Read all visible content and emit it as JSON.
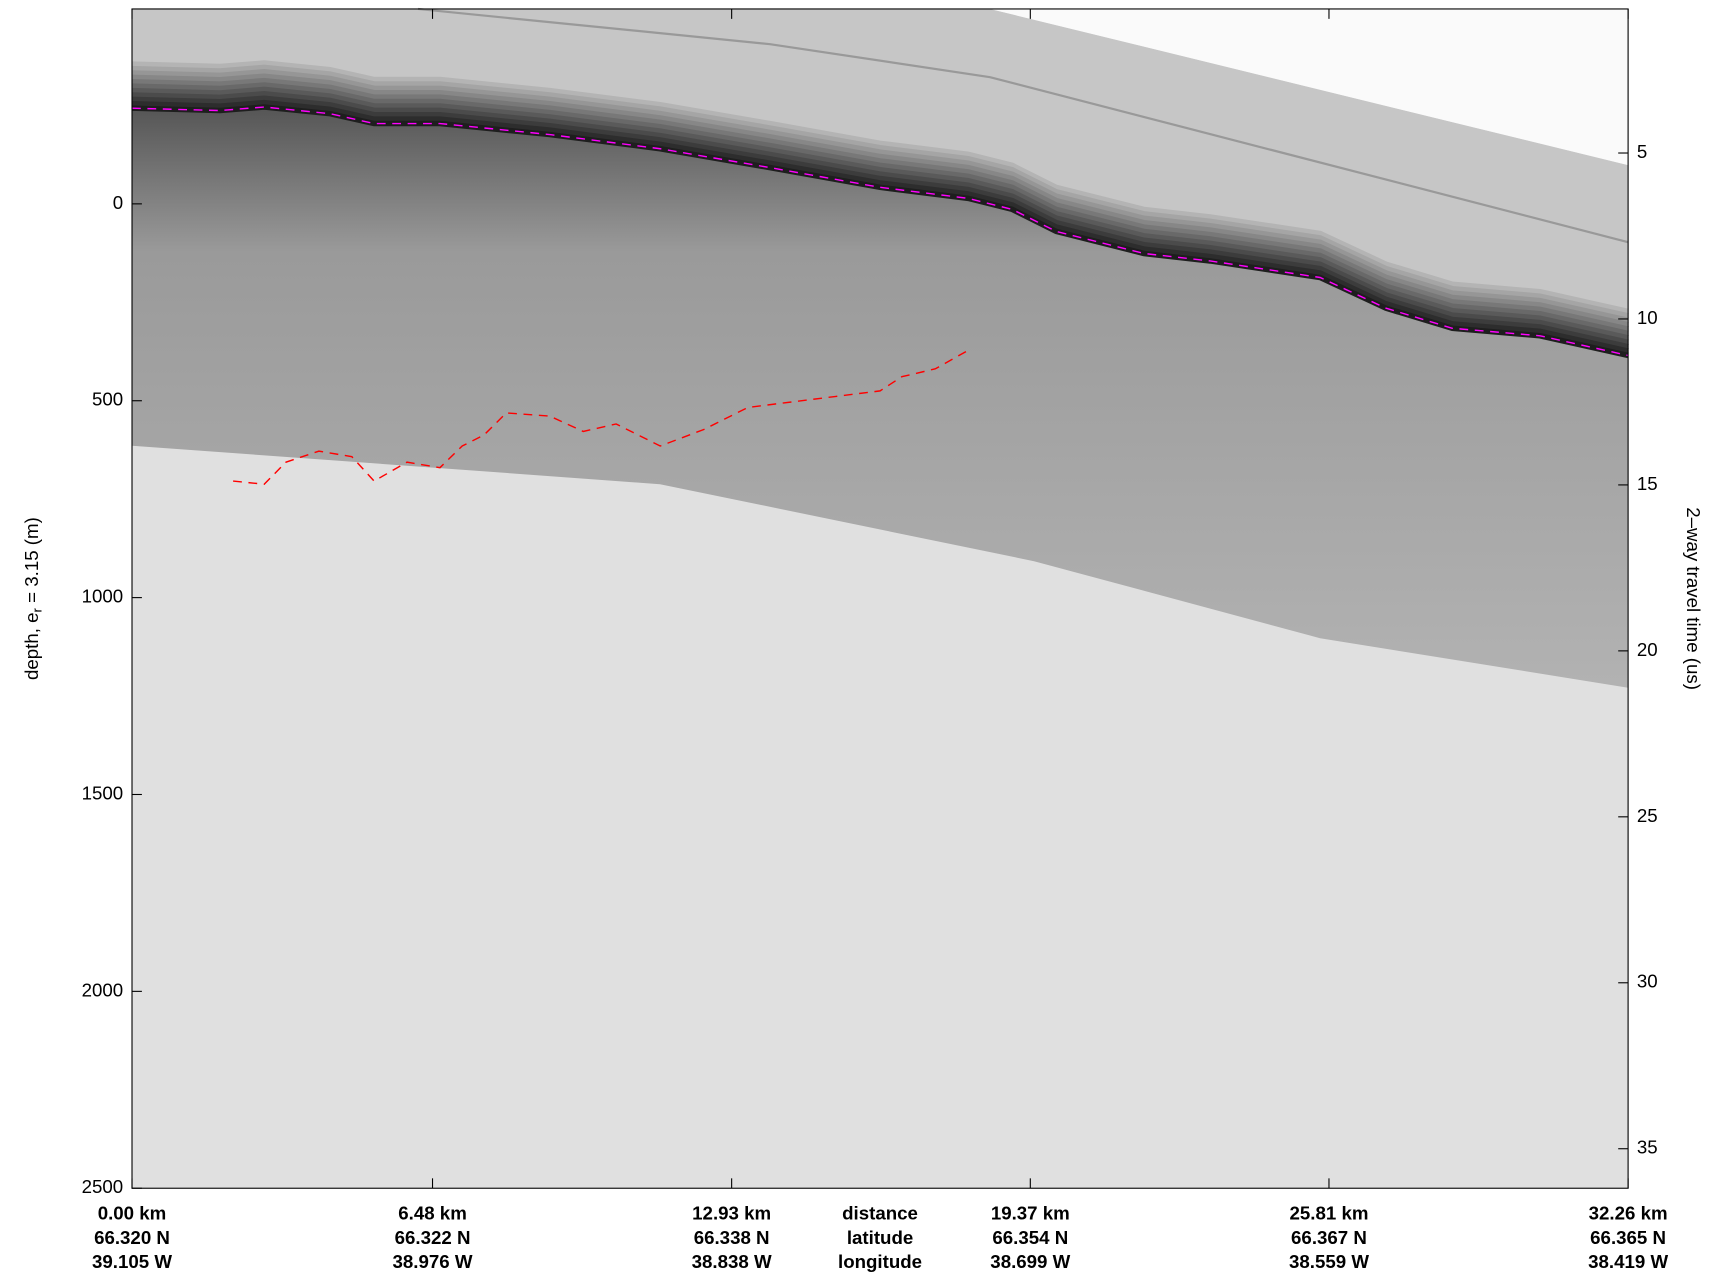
{
  "chart_data": {
    "type": "radargram",
    "ylabel": {
      "text": "depth, e",
      "sub": "r",
      "rest": " = 3.15 (m)"
    },
    "y2label": "2–way travel time (us)",
    "xlim": [
      0,
      32.26
    ],
    "ylim": [
      -495,
      2500
    ],
    "y2lim": [
      0.66,
      36.19
    ],
    "yticks": [
      0,
      500,
      1000,
      1500,
      2000,
      2500
    ],
    "y2ticks": [
      5,
      10,
      15,
      20,
      25,
      30,
      35
    ],
    "xticks": [
      {
        "value": 0,
        "label": "0.00 km"
      },
      {
        "value": 6.48,
        "label": "6.48 km"
      },
      {
        "value": 12.93,
        "label": "12.93 km"
      },
      {
        "value": 19.37,
        "label": "19.37 km"
      },
      {
        "value": 25.81,
        "label": "25.81 km"
      },
      {
        "value": 32.26,
        "label": "32.26 km"
      }
    ],
    "latitude_labels": [
      "66.320 N",
      "66.322 N",
      "66.338 N",
      "66.354 N",
      "66.367 N",
      "66.365 N"
    ],
    "longitude_labels": [
      "39.105 W",
      "38.976 W",
      "38.838 W",
      "38.699 W",
      "38.559 W",
      "38.419 W"
    ],
    "row_labels": [
      "distance",
      "latitude",
      "longitude"
    ],
    "series": [
      {
        "color": "#ff00ff",
        "x": [
          0,
          1.9,
          2.85,
          4.27,
          5.22,
          6.64,
          9.01,
          11.39,
          13.76,
          16.13,
          18.03,
          18.98,
          19.93,
          21.82,
          23.25,
          25.62,
          27.04,
          28.47,
          30.36,
          32.26
        ],
        "values": [
          -243,
          -237,
          -246,
          -229,
          -204,
          -204,
          -176,
          -140,
          -92,
          -42,
          -14,
          14,
          70,
          126,
          145,
          187,
          265,
          316,
          335,
          385
        ]
      },
      {
        "color": "#ff0000",
        "x": [
          2.18,
          2.85,
          3.32,
          4.03,
          4.74,
          5.22,
          5.93,
          6.64,
          7.12,
          7.59,
          8.07,
          9.01,
          9.73,
          10.44,
          11.39,
          12.33,
          13.28,
          14.23,
          15.18,
          16.13,
          16.6,
          17.32,
          18.03
        ],
        "values": [
          704,
          712,
          656,
          628,
          642,
          704,
          656,
          670,
          615,
          587,
          531,
          539,
          578,
          559,
          615,
          573,
          517,
          503,
          489,
          475,
          439,
          419,
          372
        ]
      }
    ]
  }
}
